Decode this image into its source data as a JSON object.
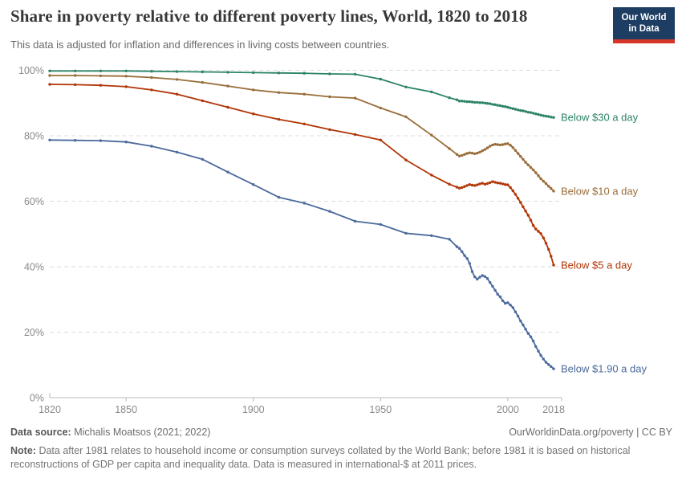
{
  "header": {
    "title": "Share in poverty relative to different poverty lines, World, 1820 to 2018",
    "subtitle": "This data is adjusted for inflation and differences in living costs between countries."
  },
  "logo": {
    "line1": "Our World",
    "line2": "in Data",
    "bg": "#1D3D63",
    "stripe": "#D8352A"
  },
  "footer": {
    "datasource_label": "Data source:",
    "datasource_value": "Michalis Moatsos (2021; 2022)",
    "url": "OurWorldinData.org/poverty",
    "divider": "|",
    "license": "CC BY",
    "note_label": "Note:",
    "note_body": "Data after 1981 relates to household income or consumption surveys collated by the World Bank; before 1981 it is based on historical reconstructions of GDP per capita and inequality data. Data is measured in international-$ at 2011 prices."
  },
  "chart_data": {
    "type": "line",
    "title": "Share in poverty relative to different poverty lines, World, 1820 to 2018",
    "xlabel": "",
    "ylabel": "",
    "xlim": [
      1820,
      2021
    ],
    "ylim": [
      0,
      100
    ],
    "grid": "horizontal-dashed",
    "legend_position": "line-end-labels",
    "x_ticks": [
      1820,
      1850,
      1900,
      1950,
      2000,
      2018
    ],
    "y_ticks": [
      0,
      20,
      40,
      60,
      80,
      100
    ],
    "y_tick_suffix": "%",
    "years": [
      1820,
      1830,
      1840,
      1850,
      1860,
      1870,
      1880,
      1890,
      1900,
      1910,
      1920,
      1930,
      1940,
      1950,
      1960,
      1970,
      1977,
      1980,
      1981,
      1982,
      1983,
      1984,
      1985,
      1986,
      1987,
      1988,
      1989,
      1990,
      1991,
      1992,
      1993,
      1994,
      1995,
      1996,
      1997,
      1998,
      1999,
      2000,
      2001,
      2002,
      2003,
      2004,
      2005,
      2006,
      2007,
      2008,
      2009,
      2010,
      2011,
      2012,
      2013,
      2014,
      2015,
      2016,
      2017,
      2018
    ],
    "series": [
      {
        "name": "Below $30 a day",
        "color": "#2C8465",
        "values": [
          99.8,
          99.8,
          99.8,
          99.8,
          99.7,
          99.6,
          99.5,
          99.4,
          99.3,
          99.2,
          99.1,
          98.9,
          98.8,
          97.3,
          94.9,
          93.4,
          91.6,
          91.0,
          90.6,
          90.6,
          90.5,
          90.4,
          90.4,
          90.3,
          90.2,
          90.2,
          90.1,
          90.1,
          90.0,
          89.9,
          89.8,
          89.6,
          89.5,
          89.3,
          89.2,
          89.0,
          88.9,
          88.7,
          88.5,
          88.3,
          88.1,
          87.9,
          87.7,
          87.6,
          87.4,
          87.2,
          87.1,
          86.9,
          86.7,
          86.5,
          86.3,
          86.1,
          86.0,
          85.9,
          85.7,
          85.6
        ]
      },
      {
        "name": "Below $10 a day",
        "color": "#996D39",
        "values": [
          98.4,
          98.4,
          98.3,
          98.2,
          97.8,
          97.2,
          96.3,
          95.2,
          94.0,
          93.2,
          92.7,
          91.9,
          91.5,
          88.5,
          85.8,
          80.2,
          76.1,
          74.3,
          73.8,
          74.0,
          74.3,
          74.6,
          74.8,
          74.7,
          74.5,
          74.7,
          75.0,
          75.4,
          75.8,
          76.3,
          76.8,
          77.2,
          77.4,
          77.3,
          77.2,
          77.3,
          77.5,
          77.6,
          77.1,
          76.4,
          75.5,
          74.6,
          73.7,
          72.8,
          71.9,
          71.1,
          70.3,
          69.6,
          68.7,
          67.8,
          66.9,
          66.1,
          65.4,
          64.6,
          63.9,
          63.1
        ]
      },
      {
        "name": "Below $5 a day",
        "color": "#B13507",
        "values": [
          95.7,
          95.6,
          95.4,
          95.0,
          94.0,
          92.7,
          90.7,
          88.7,
          86.7,
          85.0,
          83.6,
          81.9,
          80.4,
          78.7,
          72.6,
          68.0,
          65.2,
          64.3,
          64.0,
          64.2,
          64.5,
          64.8,
          65.1,
          64.9,
          64.8,
          65.0,
          65.3,
          65.5,
          65.2,
          65.4,
          65.7,
          66.0,
          65.8,
          65.6,
          65.5,
          65.3,
          65.1,
          65.0,
          64.2,
          63.2,
          62.1,
          60.9,
          59.6,
          58.3,
          57.0,
          55.7,
          54.2,
          52.6,
          51.5,
          50.8,
          50.1,
          48.8,
          47.2,
          45.3,
          43.2,
          40.5
        ]
      },
      {
        "name": "Below $1.90 a day",
        "color": "#4C6A9C",
        "values": [
          78.7,
          78.6,
          78.5,
          78.1,
          76.8,
          75.0,
          72.8,
          68.9,
          65.1,
          61.2,
          59.4,
          56.9,
          53.9,
          52.9,
          50.2,
          49.5,
          48.4,
          46.1,
          45.6,
          44.6,
          43.4,
          42.5,
          41.0,
          38.5,
          36.9,
          36.2,
          36.8,
          37.3,
          37.0,
          36.4,
          35.2,
          34.0,
          32.8,
          31.6,
          30.8,
          29.6,
          28.8,
          29.0,
          28.3,
          27.5,
          26.2,
          24.9,
          23.4,
          22.2,
          20.9,
          19.6,
          18.6,
          17.3,
          15.6,
          14.2,
          12.9,
          11.8,
          10.8,
          10.1,
          9.5,
          8.8
        ]
      }
    ]
  }
}
